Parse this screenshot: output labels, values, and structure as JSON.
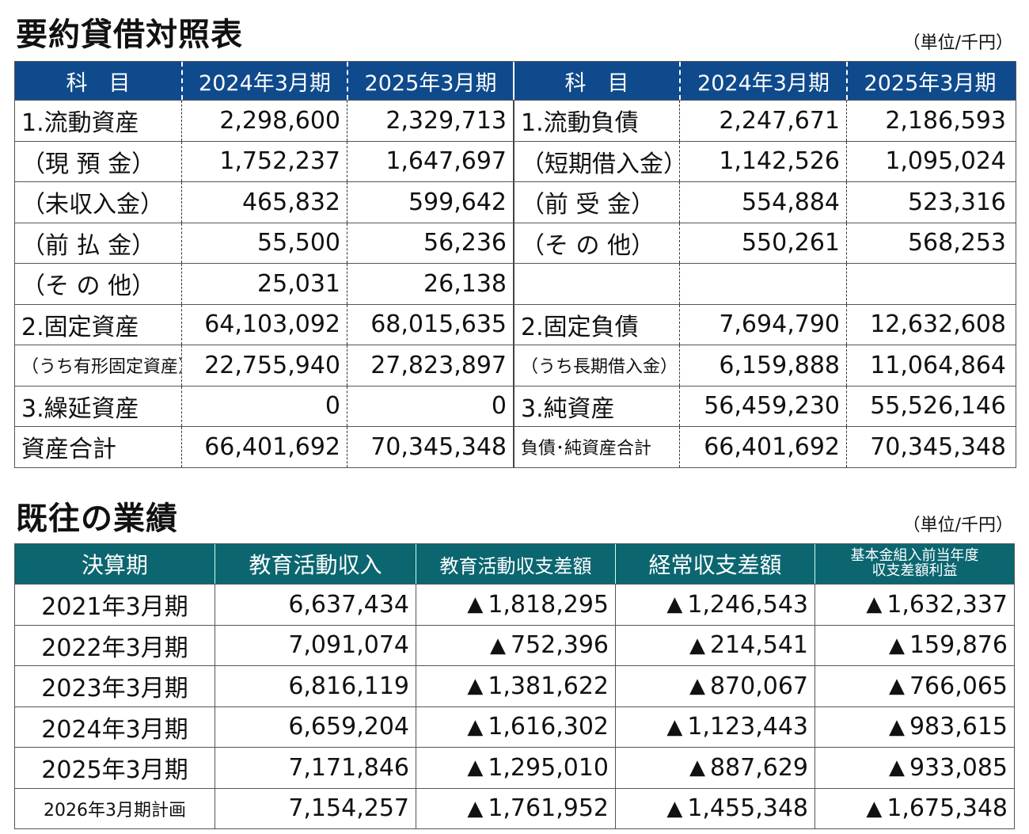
{
  "balance_sheet": {
    "title": "要約貸借対照表",
    "unit": "（単位/千円）",
    "header_color": "#0f4a8c",
    "headers": [
      "科　目",
      "2024年3月期",
      "2025年3月期",
      "科　目",
      "2024年3月期",
      "2025年3月期"
    ],
    "rows": [
      [
        "1.流動資産",
        "2,298,600",
        "2,329,713",
        "1.流動負債",
        "2,247,671",
        "2,186,593"
      ],
      [
        "（現 預 金）",
        "1,752,237",
        "1,647,697",
        "（短期借入金）",
        "1,142,526",
        "1,095,024"
      ],
      [
        "（未収入金）",
        "465,832",
        "599,642",
        "（前 受 金）",
        "554,884",
        "523,316"
      ],
      [
        "（前 払 金）",
        "55,500",
        "56,236",
        "（そ の 他）",
        "550,261",
        "568,253"
      ],
      [
        "（そ の 他）",
        "25,031",
        "26,138",
        "",
        "",
        ""
      ],
      [
        "2.固定資産",
        "64,103,092",
        "68,015,635",
        "2.固定負債",
        "7,694,790",
        "12,632,608"
      ],
      [
        "（うち有形固定資産）",
        "22,755,940",
        "27,823,897",
        "（うち長期借入金）",
        "6,159,888",
        "11,064,864"
      ],
      [
        "3.繰延資産",
        "0",
        "0",
        "3.純資産",
        "56,459,230",
        "55,526,146"
      ],
      [
        "資産合計",
        "66,401,692",
        "70,345,348",
        "負債･純資産合計",
        "66,401,692",
        "70,345,348"
      ]
    ]
  },
  "performance": {
    "title": "既往の業績",
    "unit": "（単位/千円）",
    "header_color": "#0b6670",
    "headers": [
      "決算期",
      "教育活動収入",
      "教育活動収支差額",
      "経常収支差額",
      "基本金組入前当年度",
      "収支差額利益"
    ],
    "negative_marker": "▲",
    "rows": [
      [
        "2021年3月期",
        "6,637,434",
        "1,818,295",
        "1,246,543",
        "1,632,337"
      ],
      [
        "2022年3月期",
        "7,091,074",
        "752,396",
        "214,541",
        "159,876"
      ],
      [
        "2023年3月期",
        "6,816,119",
        "1,381,622",
        "870,067",
        "766,065"
      ],
      [
        "2024年3月期",
        "6,659,204",
        "1,616,302",
        "1,123,443",
        "983,615"
      ],
      [
        "2025年3月期",
        "7,171,846",
        "1,295,010",
        "887,629",
        "933,085"
      ],
      [
        "2026年3月期計画",
        "7,154,257",
        "1,761,952",
        "1,455,348",
        "1,675,348"
      ]
    ]
  }
}
